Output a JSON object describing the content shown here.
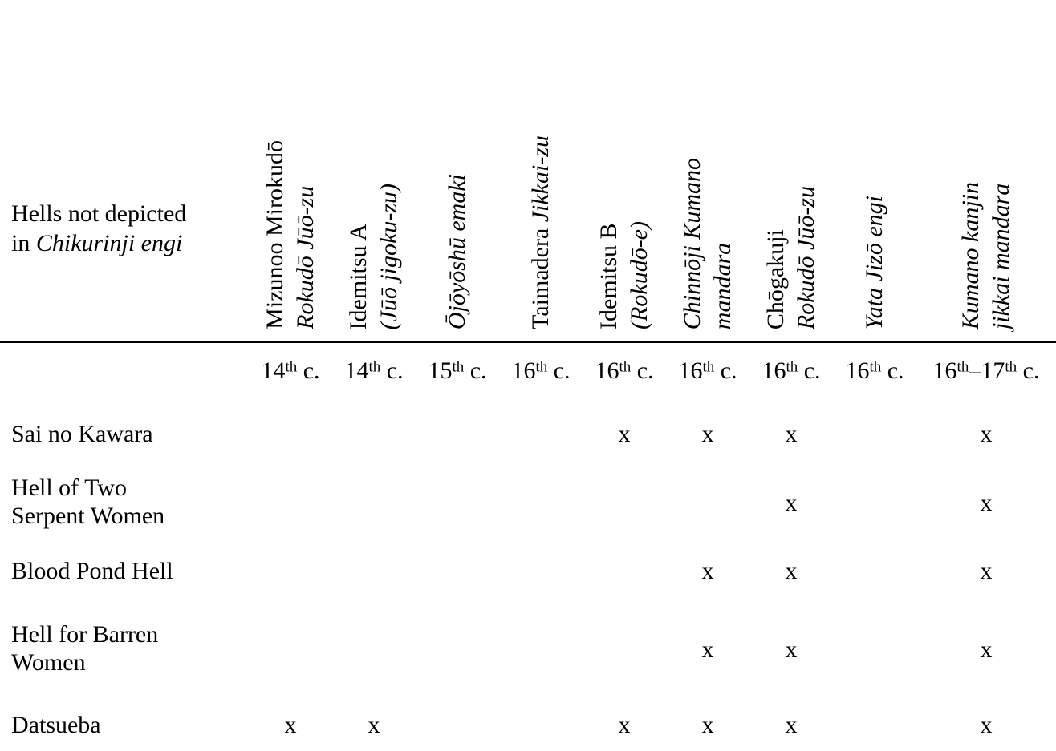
{
  "table": {
    "corner": {
      "line1": "Hells not depicted",
      "line2_plain": "in ",
      "line2_italic": "Chikurinji engi"
    },
    "columns": [
      {
        "line1_plain": "Mizunoo Mirokudō",
        "line1_italic": "",
        "line2_plain": "",
        "line2_italic": "Rokudō Jūō-zu",
        "century_num": "14",
        "century_sup": "th",
        "century_rest": " c."
      },
      {
        "line1_plain": "Idemitsu A",
        "line1_italic": "",
        "line2_plain": "",
        "line2_italic": "(Jūō jigoku-zu)",
        "century_num": "14",
        "century_sup": "th",
        "century_rest": " c."
      },
      {
        "line1_plain": "",
        "line1_italic": "Ōjōyōshū emaki",
        "line2_plain": "",
        "line2_italic": "",
        "century_num": "15",
        "century_sup": "th",
        "century_rest": " c."
      },
      {
        "line1_plain": "Taimadera ",
        "line1_italic": "Jikkai-zu",
        "line2_plain": "",
        "line2_italic": "",
        "century_num": "16",
        "century_sup": "th",
        "century_rest": " c."
      },
      {
        "line1_plain": "Idemitsu B",
        "line1_italic": "",
        "line2_plain": "",
        "line2_italic": "(Rokudō-e)",
        "century_num": "16",
        "century_sup": "th",
        "century_rest": " c."
      },
      {
        "line1_plain": "",
        "line1_italic": "Chinnōji Kumano",
        "line2_plain": "",
        "line2_italic": "mandara",
        "century_num": "16",
        "century_sup": "th",
        "century_rest": " c."
      },
      {
        "line1_plain": "Chōgakuji",
        "line1_italic": "",
        "line2_plain": "",
        "line2_italic": "Rokudō Jūō-zu",
        "century_num": "16",
        "century_sup": "th",
        "century_rest": " c."
      },
      {
        "line1_plain": "",
        "line1_italic": "Yata Jizō engi",
        "line2_plain": "",
        "line2_italic": "",
        "century_num": "16",
        "century_sup": "th",
        "century_rest": " c."
      },
      {
        "line1_plain": "",
        "line1_italic": "Kumano kanjin",
        "line2_plain": "",
        "line2_italic": "jikkai mandara",
        "century_num": "16",
        "century_sup": "th",
        "century_dash": "–",
        "century_num2": "17",
        "century_sup2": "th",
        "century_rest": " c."
      }
    ],
    "rows": [
      {
        "label1": "Sai no Kawara",
        "label2": "",
        "marks": [
          "",
          "",
          "",
          "",
          "x",
          "x",
          "x",
          "",
          "x"
        ]
      },
      {
        "label1": "Hell of Two",
        "label2": "Serpent Women",
        "marks": [
          "",
          "",
          "",
          "",
          "",
          "",
          "x",
          "",
          "x"
        ]
      },
      {
        "label1": "Blood Pond Hell",
        "label2": "",
        "marks": [
          "",
          "",
          "",
          "",
          "",
          "x",
          "x",
          "",
          "x"
        ]
      },
      {
        "label1": "Hell for Barren",
        "label2": "Women",
        "marks": [
          "",
          "",
          "",
          "",
          "",
          "x",
          "x",
          "",
          "x"
        ]
      },
      {
        "label1": "Datsueba",
        "label2": "",
        "marks": [
          "x",
          "x",
          "",
          "",
          "x",
          "x",
          "x",
          "",
          "x"
        ]
      }
    ]
  }
}
